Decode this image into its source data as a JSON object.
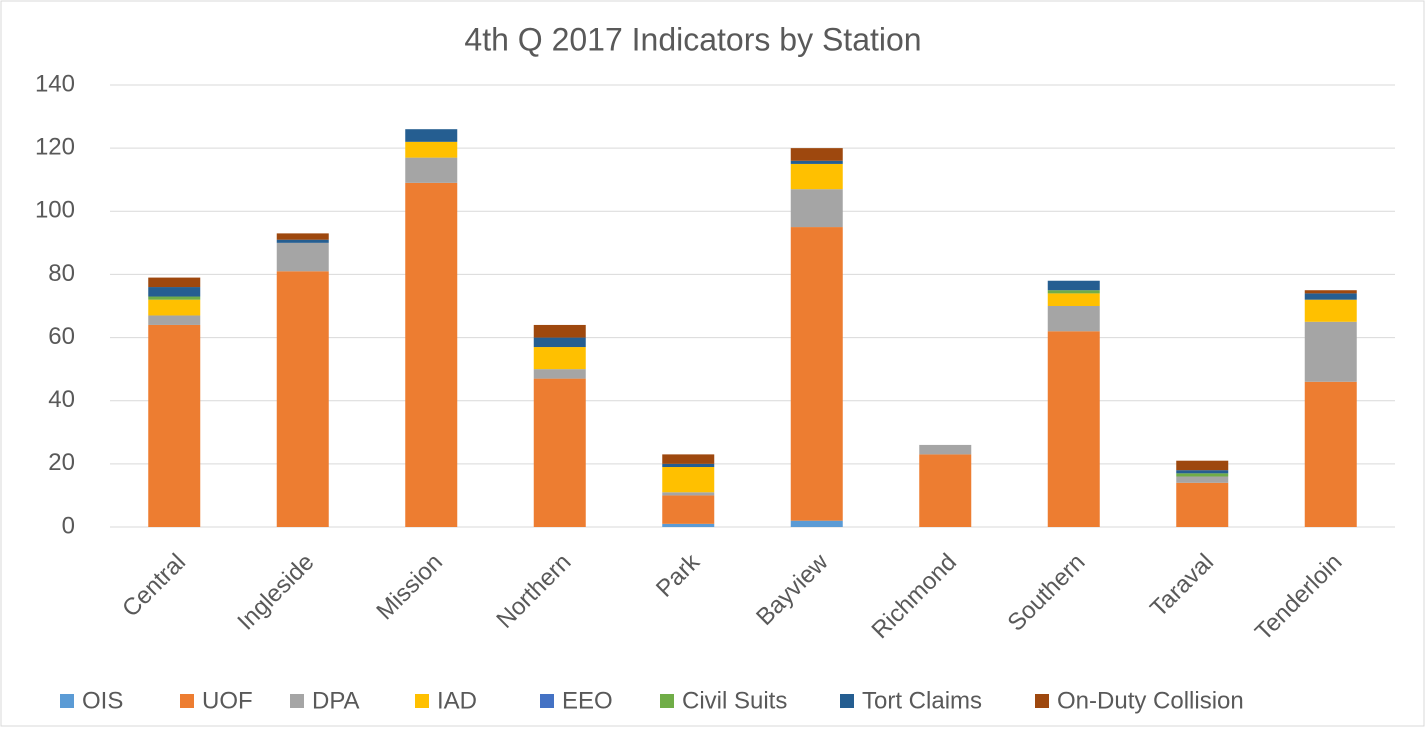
{
  "chart_data": {
    "type": "stacked_bar",
    "title": "4th Q 2017 Indicators by Station",
    "categories": [
      "Central",
      "Ingleside",
      "Mission",
      "Northern",
      "Park",
      "Bayview",
      "Richmond",
      "Southern",
      "Taraval",
      "Tenderloin"
    ],
    "series": [
      {
        "name": "OIS",
        "color": "#5b9bd5",
        "values": [
          0,
          0,
          0,
          0,
          1,
          2,
          0,
          0,
          0,
          0
        ]
      },
      {
        "name": "UOF",
        "color": "#ed7d31",
        "values": [
          64,
          81,
          109,
          47,
          9,
          93,
          23,
          62,
          14,
          46
        ]
      },
      {
        "name": "DPA",
        "color": "#a5a5a5",
        "values": [
          3,
          9,
          8,
          3,
          1,
          12,
          3,
          8,
          2,
          19
        ]
      },
      {
        "name": "IAD",
        "color": "#ffc000",
        "values": [
          5,
          0,
          5,
          7,
          8,
          8,
          0,
          4,
          0,
          7
        ]
      },
      {
        "name": "EEO",
        "color": "#4472c4",
        "values": [
          0,
          0,
          0,
          0,
          0,
          0,
          0,
          0,
          0,
          0
        ]
      },
      {
        "name": "Civil Suits",
        "color": "#70ad47",
        "values": [
          1,
          0,
          0,
          0,
          0,
          0,
          0,
          1,
          1,
          0
        ]
      },
      {
        "name": "Tort Claims",
        "color": "#255e91",
        "values": [
          3,
          1,
          4,
          3,
          1,
          1,
          0,
          3,
          1,
          2
        ]
      },
      {
        "name": "On-Duty Collision",
        "color": "#9e480e",
        "values": [
          3,
          2,
          0,
          4,
          3,
          4,
          0,
          0,
          3,
          1
        ]
      }
    ],
    "ylim": [
      0,
      140
    ],
    "yticks": [
      0,
      20,
      40,
      60,
      80,
      100,
      120,
      140
    ],
    "grid": true,
    "legend": "bottom"
  }
}
